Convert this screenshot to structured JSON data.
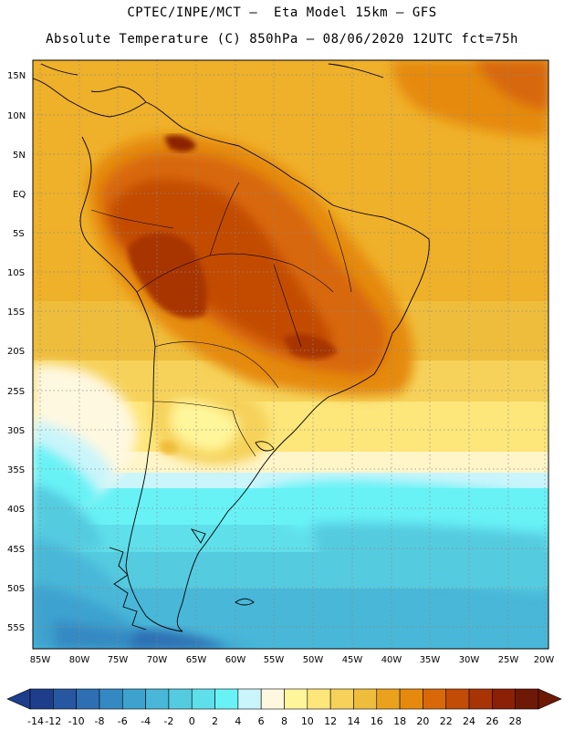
{
  "header": {
    "title_line1": "CPTEC/INPE/MCT –  Eta Model 15km – GFS",
    "title_line2": "Absolute Temperature (C) 850hPa – 08/06/2020 12UTC fct=75h"
  },
  "axes": {
    "lat_labels": [
      "15N",
      "10N",
      "5N",
      "EQ",
      "5S",
      "10S",
      "15S",
      "20S",
      "25S",
      "30S",
      "35S",
      "40S",
      "45S",
      "50S",
      "55S"
    ],
    "lon_labels": [
      "85W",
      "80W",
      "75W",
      "70W",
      "65W",
      "60W",
      "55W",
      "50W",
      "45W",
      "40W",
      "35W",
      "30W",
      "25W",
      "20W"
    ]
  },
  "colorbar": {
    "labels": [
      "-14",
      "-12",
      "-10",
      "-8",
      "-6",
      "-4",
      "-2",
      "0",
      "2",
      "4",
      "6",
      "8",
      "10",
      "12",
      "14",
      "16",
      "18",
      "20",
      "22",
      "24",
      "26",
      "28"
    ],
    "colors": [
      "#1e3e8c",
      "#2757a0",
      "#2e6fb3",
      "#3589c2",
      "#3ea2cf",
      "#48b7d8",
      "#55cbe0",
      "#5fdfea",
      "#68f2f6",
      "#c9f5fb",
      "#fff8e0",
      "#fff59a",
      "#fde67a",
      "#f6d25a",
      "#efbd3c",
      "#eaa21c",
      "#e58a0c",
      "#d86808",
      "#c24b06",
      "#a83406",
      "#8c2006",
      "#6e1806"
    ],
    "left_arrow_color": "#1e3e8c",
    "right_arrow_color": "#6e1806"
  }
}
